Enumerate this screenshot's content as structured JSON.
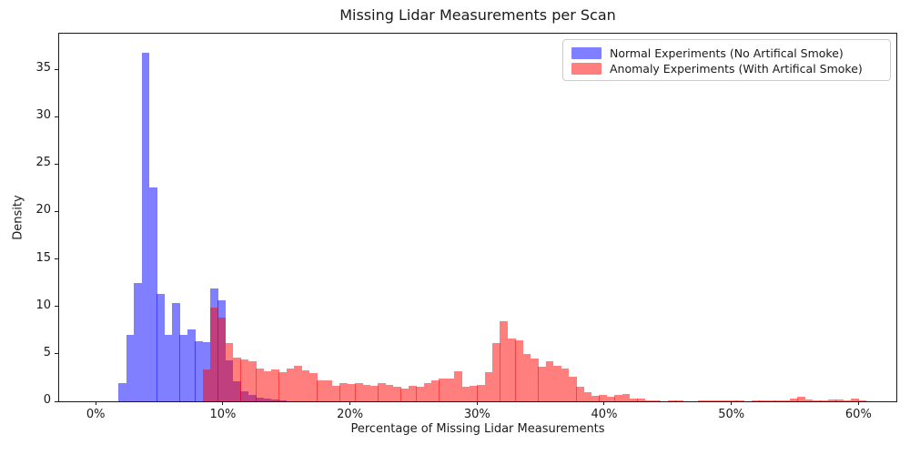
{
  "title": "Missing Lidar Measurements per Scan",
  "axes": {
    "xlabel": "Percentage of Missing Lidar Measurements",
    "ylabel": "Density",
    "x_ticks": [
      {
        "v": 0,
        "label": "0%"
      },
      {
        "v": 10,
        "label": "10%"
      },
      {
        "v": 20,
        "label": "20%"
      },
      {
        "v": 30,
        "label": "30%"
      },
      {
        "v": 40,
        "label": "40%"
      },
      {
        "v": 50,
        "label": "50%"
      },
      {
        "v": 60,
        "label": "60%"
      }
    ],
    "y_ticks": [
      {
        "v": 0,
        "label": "0"
      },
      {
        "v": 5,
        "label": "5"
      },
      {
        "v": 10,
        "label": "10"
      },
      {
        "v": 15,
        "label": "15"
      },
      {
        "v": 20,
        "label": "20"
      },
      {
        "v": 25,
        "label": "25"
      },
      {
        "v": 30,
        "label": "30"
      },
      {
        "v": 35,
        "label": "35"
      }
    ]
  },
  "legend": {
    "items": [
      {
        "label": "Normal Experiments (No Artifical Smoke)",
        "color": "#7f7fff"
      },
      {
        "label": "Anomaly Experiments (With Artifical Smoke)",
        "color": "#ff7f7f"
      }
    ]
  },
  "colors": {
    "normal_fill": "rgba(0,0,255,0.5)",
    "anomaly_fill": "rgba(255,0,0,0.5)",
    "overlap_rendered": "#bf4080",
    "axis": "#1a1a1a",
    "background": "#ffffff"
  },
  "chart_data": {
    "type": "bar",
    "subtype": "overlaid-density-histograms",
    "title": "Missing Lidar Measurements per Scan",
    "xlabel": "Percentage of Missing Lidar Measurements",
    "ylabel": "Density",
    "xlim": [
      -2.88,
      62.98
    ],
    "ylim": [
      0,
      38.74
    ],
    "grid": false,
    "legend_position": "upper right",
    "x_unit": "percent of missing lidar measurements",
    "series": [
      {
        "name": "Normal Experiments (No Artifical Smoke)",
        "fill": "rgba(0,0,255,0.5)",
        "bin_start_pct": 1.8,
        "bin_width_pct": 0.6,
        "densities": [
          1.9,
          7.0,
          12.5,
          36.7,
          22.5,
          11.3,
          7.0,
          10.4,
          7.0,
          7.6,
          6.3,
          6.2,
          11.9,
          10.6,
          4.3,
          2.1,
          1.1,
          0.65,
          0.4,
          0.25,
          0.15,
          0.1
        ]
      },
      {
        "name": "Anomaly Experiments (With Artifical Smoke)",
        "fill": "rgba(255,0,0,0.5)",
        "bin_start_pct": 8.4,
        "bin_width_pct": 0.6,
        "densities": [
          3.4,
          9.9,
          8.8,
          6.1,
          4.6,
          4.4,
          4.2,
          3.5,
          3.2,
          3.4,
          3.1,
          3.5,
          3.75,
          3.3,
          3.0,
          2.2,
          2.2,
          1.6,
          1.9,
          1.8,
          1.9,
          1.7,
          1.6,
          1.9,
          1.75,
          1.5,
          1.3,
          1.6,
          1.5,
          1.9,
          2.25,
          2.4,
          2.4,
          3.2,
          1.5,
          1.6,
          1.7,
          3.1,
          6.1,
          8.4,
          6.6,
          6.4,
          5.0,
          4.5,
          3.6,
          4.2,
          3.75,
          3.5,
          2.6,
          1.5,
          1.0,
          0.55,
          0.7,
          0.5,
          0.65,
          0.8,
          0.3,
          0.25,
          0.1,
          0.05,
          0,
          0.1,
          0.05,
          0,
          0,
          0.05,
          0.05,
          0.1,
          0.1,
          0.05,
          0.05,
          0,
          0.05,
          0.1,
          0.1,
          0.05,
          0.05,
          0.3,
          0.45,
          0.2,
          0.1,
          0.1,
          0.2,
          0.15,
          0.05,
          0.25,
          0.1
        ]
      }
    ]
  }
}
